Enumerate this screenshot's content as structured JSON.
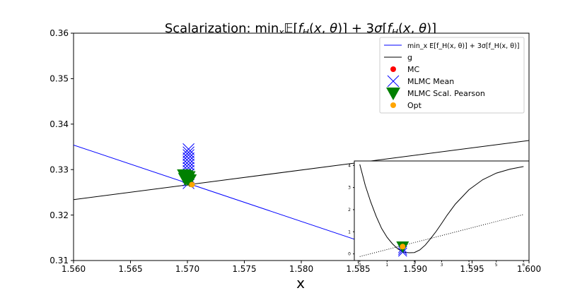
{
  "chart_data": [
    {
      "type": "line",
      "title": "Scalarization: min",
      "xlabel": "x",
      "ylabel": "",
      "xlim": [
        1.56,
        1.6
      ],
      "ylim": [
        0.31,
        0.36
      ],
      "xticks": [
        "1.560",
        "1.565",
        "1.570",
        "1.575",
        "1.580",
        "1.585",
        "1.590",
        "1.595",
        "1.600"
      ],
      "yticks": [
        "0.31",
        "0.32",
        "0.33",
        "0.34",
        "0.35",
        "0.36"
      ],
      "grid": false,
      "legend_placement": "top-right",
      "series": [
        {
          "name": "min_x E[f_H(x, θ)] + 3σ[f_H(x, θ)]",
          "kind": "line",
          "color": "#0000ff",
          "x": [
            1.56,
            1.59
          ],
          "y": [
            0.3354,
            0.3102
          ]
        },
        {
          "name": "g",
          "kind": "line",
          "color": "#000000",
          "x": [
            1.56,
            1.6
          ],
          "y": [
            0.3234,
            0.3364
          ]
        },
        {
          "name": "MC",
          "kind": "marker",
          "marker": "circle",
          "color": "#ff0000",
          "x": [
            1.5703
          ],
          "y": [
            0.3268
          ]
        },
        {
          "name": "MLMC Mean",
          "kind": "marker",
          "marker": "x",
          "color": "#0000ff",
          "x": [
            1.5701,
            1.5701,
            1.5701,
            1.5701,
            1.5701,
            1.5701,
            1.5701,
            1.5701,
            1.5701,
            1.5701,
            1.5701,
            1.5701
          ],
          "y": [
            0.3345,
            0.3338,
            0.3332,
            0.3325,
            0.3318,
            0.3311,
            0.3304,
            0.3297,
            0.329,
            0.3283,
            0.3276,
            0.327
          ]
        },
        {
          "name": "MLMC Scal. Pearson",
          "kind": "marker",
          "marker": "triangle-down",
          "color": "#008000",
          "x": [
            1.5697,
            1.5699,
            1.5701,
            1.5698,
            1.57,
            1.5702
          ],
          "y": [
            0.3288,
            0.3286,
            0.3284,
            0.328,
            0.3279,
            0.3277
          ]
        },
        {
          "name": "Opt",
          "kind": "marker",
          "marker": "circle",
          "color": "#ffa500",
          "x": [
            1.5704
          ],
          "y": [
            0.3267
          ]
        }
      ],
      "legend_entries": [
        "min_x E[f_H(x, θ)] + 3σ[f_H(x, θ)]",
        "g",
        "MC",
        "MLMC Mean",
        "MLMC Scal. Pearson",
        "Opt"
      ]
    },
    {
      "type": "line",
      "title": "",
      "xlim": [
        -0.2,
        6.2
      ],
      "ylim": [
        -0.3,
        4.2
      ],
      "xticks": [
        "0",
        "1",
        "2",
        "3",
        "4",
        "5",
        "6"
      ],
      "yticks": [
        "0",
        "1",
        "2",
        "3",
        "4"
      ],
      "series": [
        {
          "name": "",
          "kind": "line",
          "color": "#000000",
          "style": "solid",
          "x": [
            0,
            0.2,
            0.4,
            0.6,
            0.8,
            1.0,
            1.2,
            1.4,
            1.6,
            1.8,
            2.0,
            2.2,
            2.4,
            2.6,
            2.8,
            3.0,
            3.2,
            3.5,
            4.0,
            4.5,
            5.0,
            5.5,
            6.0
          ],
          "y": [
            4.05,
            3.1,
            2.35,
            1.7,
            1.15,
            0.75,
            0.45,
            0.22,
            0.08,
            0.05,
            0.06,
            0.18,
            0.4,
            0.7,
            1.02,
            1.38,
            1.75,
            2.25,
            2.9,
            3.35,
            3.65,
            3.83,
            3.95
          ]
        },
        {
          "name": "",
          "kind": "line",
          "color": "#000000",
          "style": "dotted",
          "x": [
            0,
            6
          ],
          "y": [
            -0.12,
            1.78
          ]
        },
        {
          "name": "",
          "kind": "marker",
          "marker": "x",
          "color": "#0000ff",
          "x": [
            1.57,
            1.57,
            1.57
          ],
          "y": [
            0.08,
            0.16,
            0.24
          ]
        },
        {
          "name": "",
          "kind": "marker",
          "marker": "triangle-down",
          "color": "#008000",
          "x": [
            1.57
          ],
          "y": [
            0.33
          ]
        },
        {
          "name": "",
          "kind": "marker",
          "marker": "circle",
          "color": "#ffa500",
          "x": [
            1.57
          ],
          "y": [
            0.33
          ]
        }
      ]
    }
  ]
}
